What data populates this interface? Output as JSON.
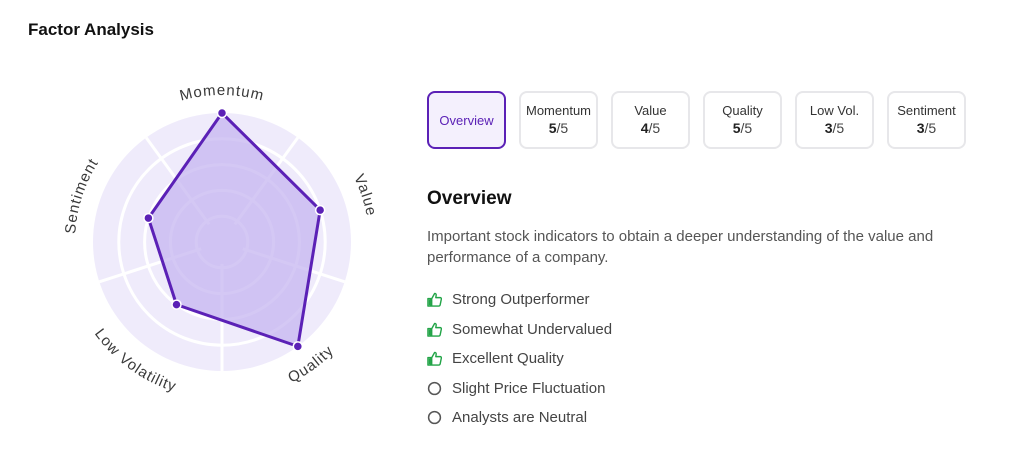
{
  "page_title": "Factor Analysis",
  "colors": {
    "accent": "#5b21b6",
    "radar_fill": "#c6b5f0",
    "radar_stroke": "#5b21b6",
    "radar_background": "#efebfb",
    "positive": "#22a447",
    "neutral": "#555555"
  },
  "chart_data": {
    "type": "radar",
    "axes": [
      "Momentum",
      "Value",
      "Quality",
      "Low Volatility",
      "Sentiment"
    ],
    "values": [
      5,
      4,
      5,
      3,
      3
    ],
    "range": [
      0,
      5
    ],
    "rings": 5,
    "grid": true
  },
  "tabs": [
    {
      "name": "Overview",
      "score": "",
      "max": "",
      "active": true
    },
    {
      "name": "Momentum",
      "score": "5",
      "max": "/5",
      "active": false
    },
    {
      "name": "Value",
      "score": "4",
      "max": "/5",
      "active": false
    },
    {
      "name": "Quality",
      "score": "5",
      "max": "/5",
      "active": false
    },
    {
      "name": "Low Vol.",
      "score": "3",
      "max": "/5",
      "active": false
    },
    {
      "name": "Sentiment",
      "score": "3",
      "max": "/5",
      "active": false
    }
  ],
  "overview": {
    "title": "Overview",
    "description": "Important stock indicators to obtain a deeper understanding of the value and performance of a company.",
    "indicators": [
      {
        "text": "Strong Outperformer",
        "icon": "thumbs-up-icon"
      },
      {
        "text": "Somewhat Undervalued",
        "icon": "thumbs-up-icon"
      },
      {
        "text": "Excellent Quality",
        "icon": "thumbs-up-icon"
      },
      {
        "text": "Slight Price Fluctuation",
        "icon": "circle-icon"
      },
      {
        "text": "Analysts are Neutral",
        "icon": "circle-icon"
      }
    ]
  }
}
